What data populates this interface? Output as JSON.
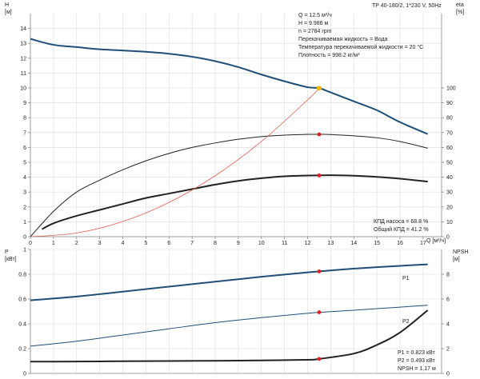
{
  "title": "TP 40-180/2, 1*230 V, 50Hz",
  "operating_point": {
    "lines": [
      "Q = 12.5 м³/ч",
      "H = 9.986 м",
      "n = 2784 rpm",
      "Перекачиваемая жидкость = Вода",
      "Температура перекачиваемой жидкости = 20 °C",
      "Плотность = 998.2 кг/м³"
    ]
  },
  "efficiency_box": {
    "lines": [
      "КПД насоса = 68.8 %",
      "Общий КПД = 41.2 %"
    ]
  },
  "power_box": {
    "lines": [
      "P1 = 0.823 кВт",
      "P2 = 0.493 кВт",
      "NPSH = 1.17 м"
    ]
  },
  "colors": {
    "head": "#1f4e79",
    "power": "#1f4e79",
    "eta": "#222222",
    "system": "#e06050",
    "marker": "#e02020",
    "duty": "#f5b800"
  },
  "chart_data": [
    {
      "type": "line",
      "panel": "top",
      "xlabel": "Q [м³/ч]",
      "ylabel_left": "H [м]",
      "ylabel_right": "eta [%]",
      "xlim": [
        0,
        17.8
      ],
      "ylim_left": [
        0,
        15
      ],
      "ylim_right": [
        0,
        150
      ],
      "x_ticks": [
        0,
        1,
        2,
        3,
        4,
        5,
        6,
        7,
        8,
        9,
        10,
        11,
        12,
        13,
        14,
        15,
        16,
        17
      ],
      "y_ticks_left": [
        0,
        1,
        2,
        3,
        4,
        5,
        6,
        7,
        8,
        9,
        10,
        11,
        12,
        13,
        14
      ],
      "y_ticks_right": [
        0,
        10,
        20,
        30,
        40,
        50,
        60,
        70,
        80,
        90,
        100
      ],
      "grid": true,
      "series": [
        {
          "id": "head",
          "axis": "left",
          "width": 2,
          "x": [
            0,
            1,
            2,
            3,
            4,
            5,
            6,
            7,
            8,
            9,
            10,
            11,
            12,
            12.5,
            13,
            14,
            15,
            16,
            17.2
          ],
          "y": [
            13.3,
            12.9,
            12.75,
            12.6,
            12.52,
            12.43,
            12.3,
            12.1,
            11.8,
            11.4,
            10.9,
            10.45,
            10.05,
            9.986,
            9.7,
            9.1,
            8.5,
            7.7,
            6.9
          ]
        },
        {
          "id": "eta-pump",
          "axis": "right",
          "width": 1,
          "x": [
            0,
            1,
            2,
            3,
            4,
            5,
            6,
            7,
            8,
            9,
            10,
            11,
            12,
            12.5,
            13,
            14,
            15,
            16,
            17.2
          ],
          "y": [
            0,
            17,
            30,
            38,
            45,
            51,
            56,
            60,
            63,
            65.5,
            67.3,
            68.3,
            68.8,
            68.8,
            68.7,
            67.8,
            66.5,
            64,
            59.5
          ]
        },
        {
          "id": "eta-total",
          "axis": "right",
          "width": 2,
          "x": [
            0.5,
            1,
            2,
            3,
            4,
            5,
            6,
            7,
            8,
            9,
            10,
            11,
            12,
            12.5,
            13,
            14,
            15,
            16,
            17.2
          ],
          "y": [
            5,
            9,
            14,
            18,
            22,
            26,
            29,
            32,
            35,
            37.5,
            39.3,
            40.6,
            41.1,
            41.2,
            41.3,
            41,
            40.2,
            39,
            37
          ]
        },
        {
          "id": "system",
          "axis": "left",
          "width": 0.8,
          "x": [
            0,
            2,
            4,
            6,
            8,
            10,
            12,
            12.5
          ],
          "y": [
            0,
            0.25,
            1.02,
            2.3,
            4.1,
            6.4,
            9.2,
            9.986
          ]
        }
      ],
      "points": [
        {
          "id": "duty-point",
          "axis": "left",
          "x": 12.5,
          "y": 9.986,
          "color": "duty"
        },
        {
          "id": "eta-pump-point",
          "axis": "right",
          "x": 12.5,
          "y": 68.8,
          "color": "marker"
        },
        {
          "id": "eta-total-point",
          "axis": "right",
          "x": 12.5,
          "y": 41.2,
          "color": "marker"
        }
      ]
    },
    {
      "type": "line",
      "panel": "bottom",
      "ylabel_left": "P [кВт]",
      "ylabel_right": "NPSH [м]",
      "xlim": [
        0,
        17.8
      ],
      "ylim_left": [
        0,
        1.0
      ],
      "ylim_right": [
        0,
        10
      ],
      "y_ticks_left": [
        0.0,
        0.2,
        0.4,
        0.6,
        0.8,
        1.0
      ],
      "y_ticks_right": [
        0,
        2,
        4,
        6,
        8
      ],
      "grid": true,
      "series": [
        {
          "id": "P1",
          "name": "P1",
          "axis": "left",
          "width": 2,
          "x": [
            0,
            2,
            4,
            6,
            8,
            10,
            12,
            12.5,
            14,
            16,
            17.2
          ],
          "y": [
            0.59,
            0.62,
            0.66,
            0.7,
            0.74,
            0.78,
            0.815,
            0.823,
            0.845,
            0.868,
            0.88
          ]
        },
        {
          "id": "P2",
          "name": "P2",
          "axis": "left",
          "width": 1,
          "x": [
            0,
            2,
            4,
            6,
            8,
            10,
            12,
            12.5,
            14,
            16,
            17.2
          ],
          "y": [
            0.22,
            0.26,
            0.31,
            0.36,
            0.41,
            0.45,
            0.485,
            0.493,
            0.51,
            0.535,
            0.55
          ]
        },
        {
          "id": "NPSH",
          "axis": "right",
          "width": 2,
          "x": [
            0,
            2,
            4,
            6,
            8,
            10,
            12,
            12.5,
            14,
            15,
            16,
            17.2
          ],
          "y": [
            0.95,
            0.96,
            0.98,
            1.0,
            1.02,
            1.05,
            1.1,
            1.17,
            1.6,
            2.3,
            3.3,
            5.1
          ]
        }
      ],
      "points": [
        {
          "id": "P1-point",
          "axis": "left",
          "x": 12.5,
          "y": 0.823,
          "color": "marker"
        },
        {
          "id": "P2-point",
          "axis": "left",
          "x": 12.5,
          "y": 0.493,
          "color": "marker"
        },
        {
          "id": "NPSH-point",
          "axis": "right",
          "x": 12.5,
          "y": 1.17,
          "color": "marker"
        }
      ]
    }
  ]
}
